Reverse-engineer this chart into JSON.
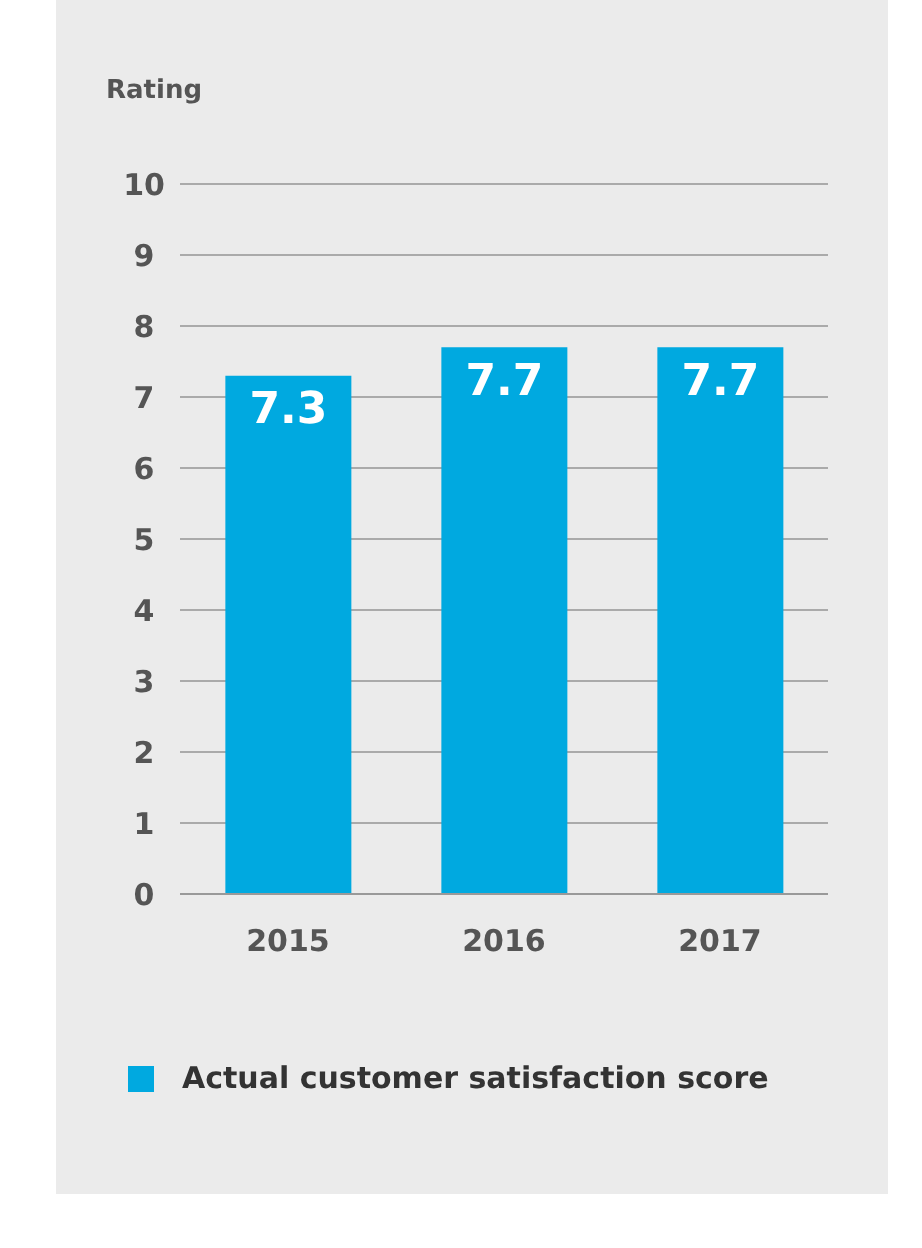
{
  "chart_data": {
    "type": "bar",
    "ylabel": "Rating",
    "categories": [
      "2015",
      "2016",
      "2017"
    ],
    "series": [
      {
        "name": "Actual customer satisfaction score",
        "color": "#00a9e0",
        "values": [
          7.3,
          7.7,
          7.7
        ]
      }
    ],
    "ylim": [
      0,
      10
    ],
    "yticks": [
      0,
      1,
      2,
      3,
      4,
      5,
      6,
      7,
      8,
      9,
      10
    ],
    "grid": "y",
    "legend": "bottom left",
    "data_labels": true
  }
}
